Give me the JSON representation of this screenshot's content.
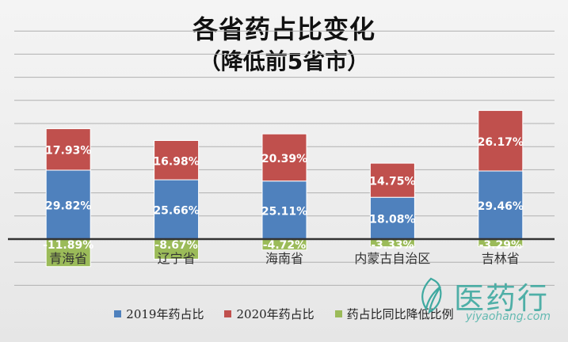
{
  "chart_data": {
    "type": "bar",
    "stacked": true,
    "title": "各省药占比变化",
    "subtitle": "（降低前5省市）",
    "categories": [
      "青海省",
      "辽宁省",
      "海南省",
      "内蒙古自治区",
      "吉林省"
    ],
    "series": [
      {
        "name": "2019年药占比",
        "color": "#4f81bd",
        "values": [
          29.82,
          25.66,
          25.11,
          18.08,
          29.46
        ],
        "labels": [
          "29.82%",
          "25.66%",
          "25.11%",
          "18.08%",
          "29.46%"
        ]
      },
      {
        "name": "2020年药占比",
        "color": "#c0504d",
        "values": [
          17.93,
          16.98,
          20.39,
          14.75,
          26.17
        ],
        "labels": [
          "17.93%",
          "16.98%",
          "20.39%",
          "14.75%",
          "26.17%"
        ]
      },
      {
        "name": "药占比同比降低比例",
        "color": "#9bbb59",
        "values": [
          -11.89,
          -8.67,
          -4.72,
          -3.33,
          -3.29
        ],
        "labels": [
          "-11.89%",
          "-8.67%",
          "-4.72%",
          "-3.33%",
          "-3.29%"
        ]
      }
    ],
    "ylim": [
      -30,
      100
    ],
    "grid": true,
    "legend_position": "bottom"
  },
  "watermark": {
    "main": "医药行",
    "sub": "yiyaohang.com"
  },
  "colors": {
    "axis": "#333333",
    "grid": "#b0b0b0",
    "data_label": "#ffffff"
  }
}
